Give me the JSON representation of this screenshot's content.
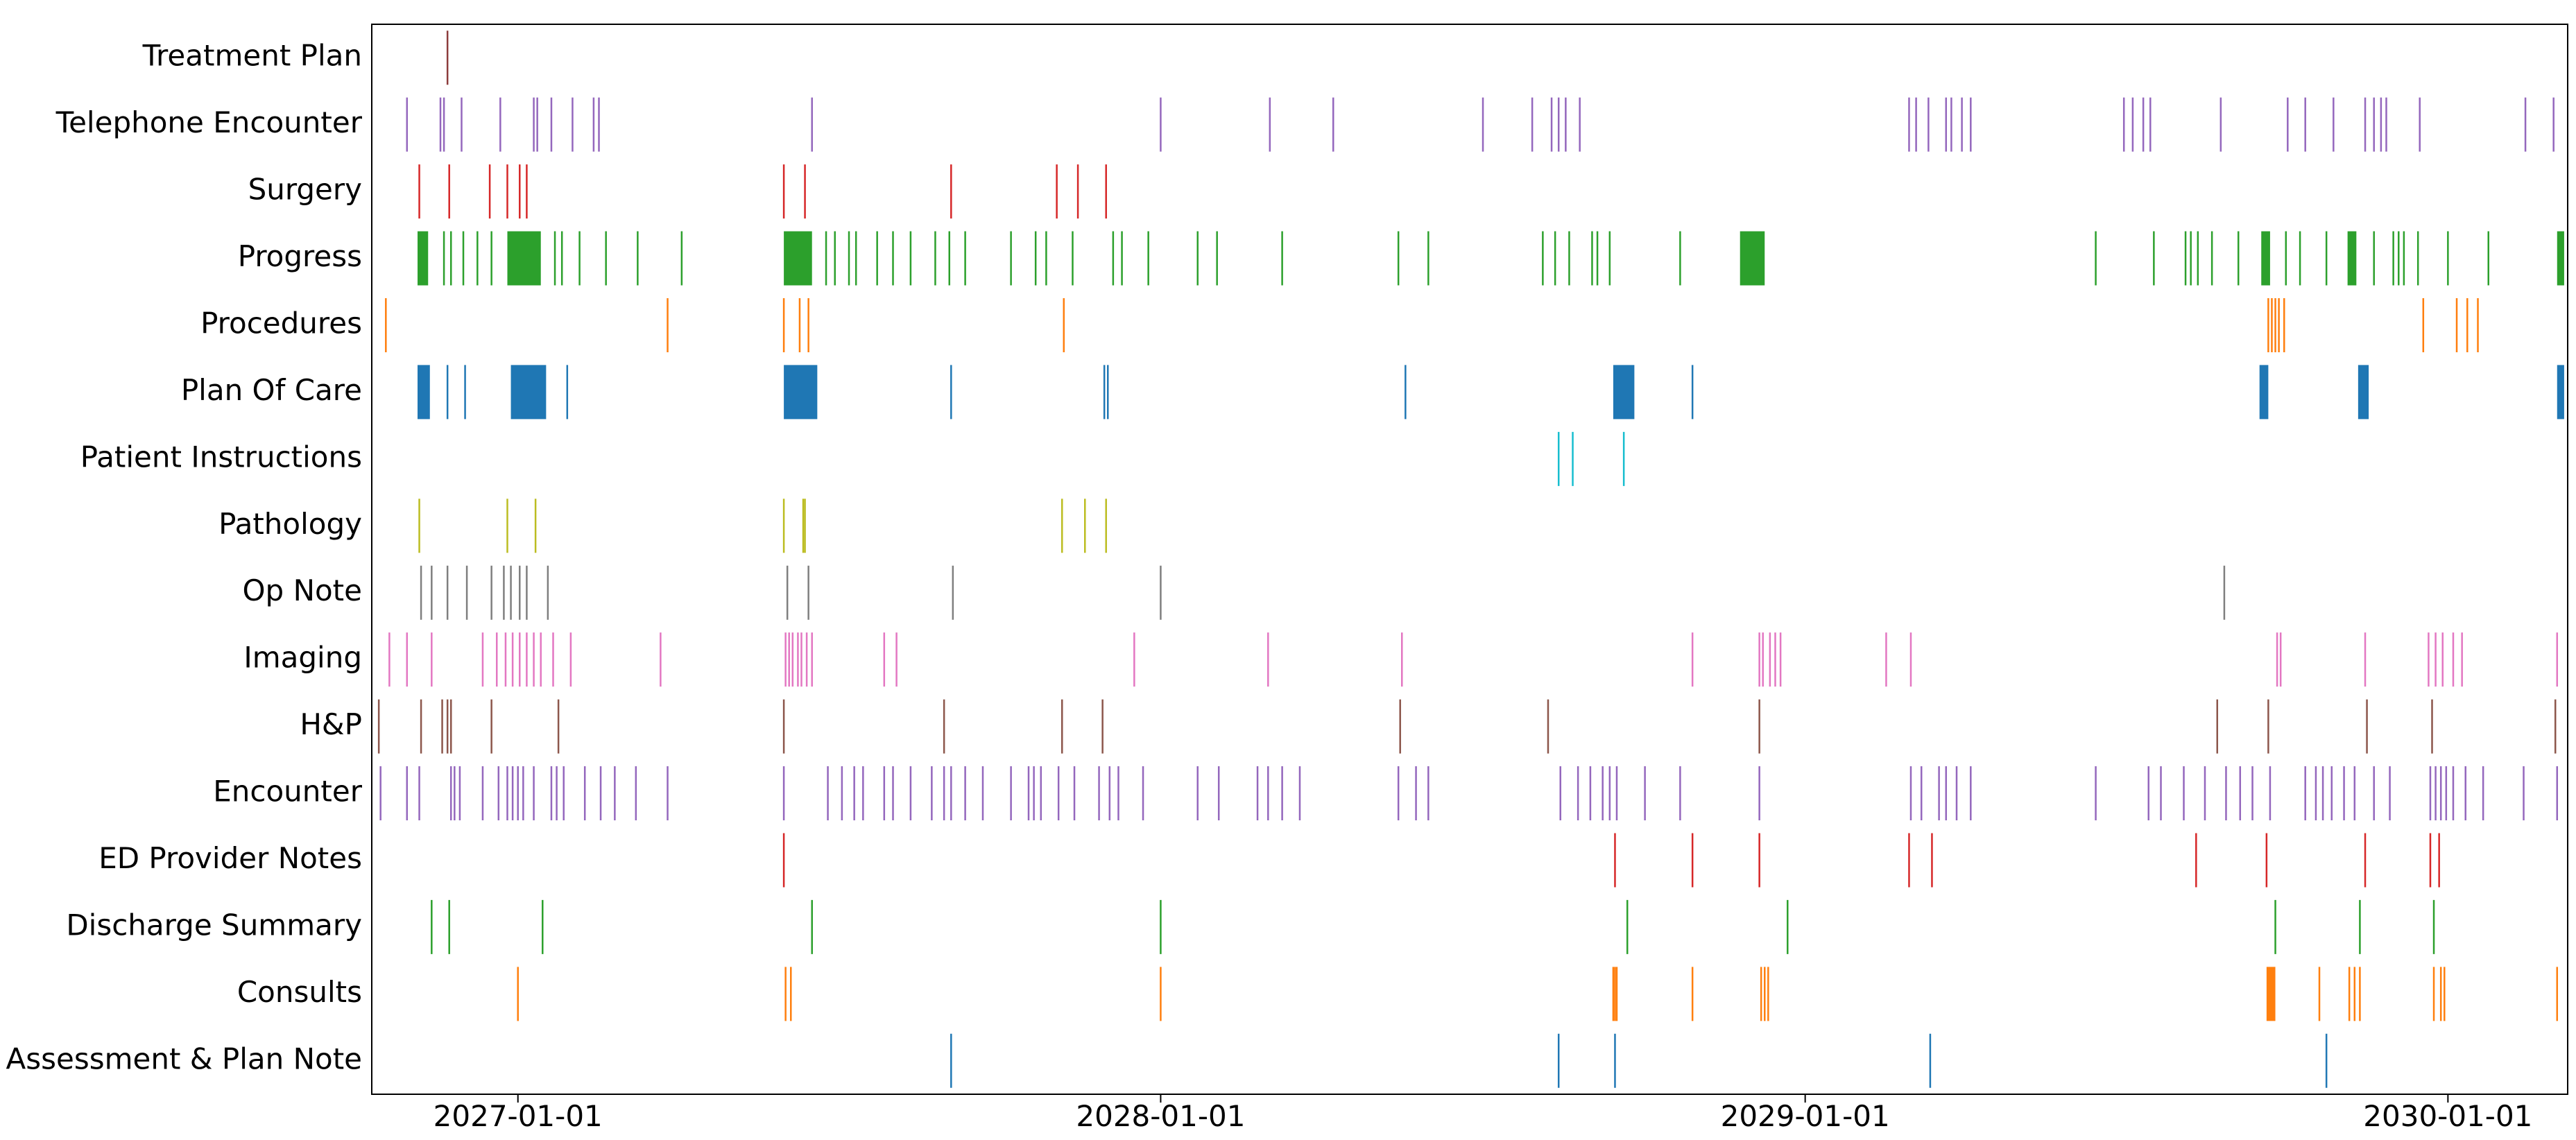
{
  "chart_data": {
    "type": "event-timeline",
    "xlabel": "",
    "ylabel": "",
    "x_tick_labels": [
      "2027-01-01",
      "2028-01-01",
      "2029-01-01",
      "2030-01-01"
    ],
    "xlim": [
      "2026-10-10",
      "2030-03-10"
    ],
    "grid": false,
    "series": [
      {
        "name": "Treatment Plan",
        "color": "#8c3b3b",
        "dates": [
          "2026-11-22"
        ]
      },
      {
        "name": "Telephone Encounter",
        "color": "#9467bd",
        "dates": [
          "2026-10-30",
          "2026-11-18",
          "2026-11-20",
          "2026-11-30",
          "2026-12-22",
          "2027-01-10",
          "2027-01-12",
          "2027-01-20",
          "2027-02-01",
          "2027-02-13",
          "2027-02-16",
          "2027-06-17",
          "2028-01-01",
          "2028-03-03",
          "2028-04-08",
          "2028-07-02",
          "2028-07-30",
          "2028-08-10",
          "2028-08-14",
          "2028-08-18",
          "2028-08-26",
          "2029-03-01",
          "2029-03-05",
          "2029-03-12",
          "2029-03-22",
          "2029-03-25",
          "2029-03-31",
          "2029-04-05",
          "2029-07-01",
          "2029-07-06",
          "2029-07-12",
          "2029-07-16",
          "2029-08-25",
          "2029-10-02",
          "2029-10-12",
          "2029-10-28",
          "2029-11-15",
          "2029-11-20",
          "2029-11-24",
          "2029-11-27",
          "2029-12-16",
          "2030-02-14",
          "2030-03-02"
        ]
      },
      {
        "name": "Surgery",
        "color": "#d62728",
        "dates": [
          "2026-11-06",
          "2026-11-23",
          "2026-12-16",
          "2026-12-26",
          "2027-01-02",
          "2027-01-06",
          "2027-06-01",
          "2027-06-13",
          "2027-09-04",
          "2027-11-03",
          "2027-11-15",
          "2027-12-01"
        ]
      },
      {
        "name": "Progress",
        "color": "#2ca02c",
        "ranges": [
          [
            "2026-11-05",
            "2026-11-11"
          ],
          [
            "2026-12-26",
            "2027-01-14"
          ],
          [
            "2027-06-01",
            "2027-06-17"
          ],
          [
            "2028-11-25",
            "2028-12-09"
          ],
          [
            "2029-09-17",
            "2029-09-22"
          ],
          [
            "2029-11-05",
            "2029-11-10"
          ],
          [
            "2030-03-04",
            "2030-03-08"
          ]
        ],
        "dates": [
          "2026-11-20",
          "2026-11-24",
          "2026-12-01",
          "2026-12-09",
          "2026-12-17",
          "2027-01-22",
          "2027-01-26",
          "2027-02-05",
          "2027-02-20",
          "2027-03-10",
          "2027-04-04",
          "2027-06-25",
          "2027-06-30",
          "2027-07-08",
          "2027-07-12",
          "2027-07-24",
          "2027-08-02",
          "2027-08-12",
          "2027-08-26",
          "2027-09-03",
          "2027-09-12",
          "2027-10-08",
          "2027-10-22",
          "2027-10-28",
          "2027-11-12",
          "2027-12-05",
          "2027-12-10",
          "2027-12-25",
          "2028-01-22",
          "2028-02-02",
          "2028-03-10",
          "2028-05-15",
          "2028-06-01",
          "2028-08-05",
          "2028-08-12",
          "2028-08-20",
          "2028-09-02",
          "2028-09-05",
          "2028-09-12",
          "2028-10-22",
          "2029-06-15",
          "2029-07-18",
          "2029-08-05",
          "2029-08-08",
          "2029-08-12",
          "2029-08-20",
          "2029-09-04",
          "2029-10-01",
          "2029-10-09",
          "2029-10-24",
          "2029-11-20",
          "2029-12-01",
          "2029-12-04",
          "2029-12-07",
          "2029-12-15",
          "2030-01-01",
          "2030-01-24"
        ]
      },
      {
        "name": "Procedures",
        "color": "#ff7f0e",
        "dates": [
          "2026-10-18",
          "2027-03-27",
          "2027-06-01",
          "2027-06-10",
          "2027-06-15",
          "2027-11-07",
          "2029-09-21",
          "2029-09-23",
          "2029-09-25",
          "2029-09-27",
          "2029-09-30",
          "2029-12-18",
          "2030-01-06",
          "2030-01-12",
          "2030-01-18"
        ]
      },
      {
        "name": "Plan Of Care",
        "color": "#1f77b4",
        "ranges": [
          [
            "2026-11-05",
            "2026-11-12"
          ],
          [
            "2026-12-28",
            "2027-01-17"
          ],
          [
            "2027-06-01",
            "2027-06-20"
          ],
          [
            "2028-09-14",
            "2028-09-26"
          ],
          [
            "2029-09-16",
            "2029-09-21"
          ],
          [
            "2029-11-11",
            "2029-11-17"
          ],
          [
            "2030-03-04",
            "2030-03-08"
          ]
        ],
        "dates": [
          "2026-11-22",
          "2026-12-02",
          "2027-01-29",
          "2027-09-04",
          "2027-11-30",
          "2027-12-02",
          "2028-05-19",
          "2028-10-29"
        ]
      },
      {
        "name": "Patient Instructions",
        "color": "#17becf",
        "dates": [
          "2028-08-14",
          "2028-08-22",
          "2028-09-20"
        ]
      },
      {
        "name": "Pathology",
        "color": "#bcbd22",
        "dates": [
          "2026-11-06",
          "2026-12-26",
          "2027-01-11",
          "2027-06-01",
          "2027-06-12",
          "2027-06-13",
          "2027-11-06",
          "2027-11-19",
          "2027-12-01"
        ]
      },
      {
        "name": "Op Note",
        "color": "#7f7f7f",
        "dates": [
          "2026-11-07",
          "2026-11-13",
          "2026-11-22",
          "2026-12-03",
          "2026-12-17",
          "2026-12-24",
          "2026-12-28",
          "2027-01-02",
          "2027-01-06",
          "2027-01-18",
          "2027-06-03",
          "2027-06-15",
          "2027-09-05",
          "2028-01-01",
          "2029-08-27"
        ]
      },
      {
        "name": "Imaging",
        "color": "#e377c2",
        "dates": [
          "2026-10-20",
          "2026-10-30",
          "2026-11-13",
          "2026-12-12",
          "2026-12-20",
          "2026-12-25",
          "2026-12-29",
          "2027-01-02",
          "2027-01-06",
          "2027-01-10",
          "2027-01-14",
          "2027-01-21",
          "2027-01-31",
          "2027-03-23",
          "2027-06-02",
          "2027-06-04",
          "2027-06-06",
          "2027-06-09",
          "2027-06-11",
          "2027-06-14",
          "2027-06-17",
          "2027-07-28",
          "2027-08-04",
          "2027-12-17",
          "2028-03-02",
          "2028-05-17",
          "2028-10-29",
          "2028-12-06",
          "2028-12-08",
          "2028-12-12",
          "2028-12-15",
          "2028-12-18",
          "2029-02-16",
          "2029-03-02",
          "2029-09-26",
          "2029-09-28",
          "2029-11-15",
          "2029-12-21",
          "2029-12-25",
          "2029-12-29",
          "2030-01-04",
          "2030-01-09",
          "2030-03-04"
        ]
      },
      {
        "name": "H&P",
        "color": "#8c564b",
        "dates": [
          "2026-10-14",
          "2026-11-07",
          "2026-11-19",
          "2026-11-22",
          "2026-11-24",
          "2026-12-17",
          "2027-01-24",
          "2027-06-01",
          "2027-08-31",
          "2027-11-06",
          "2027-11-29",
          "2028-05-16",
          "2028-08-08",
          "2028-12-06",
          "2029-08-23",
          "2029-09-21",
          "2029-11-16",
          "2029-12-23",
          "2030-03-03"
        ]
      },
      {
        "name": "Encounter",
        "color": "#9467bd",
        "dates": [
          "2026-10-15",
          "2026-10-30",
          "2026-11-06",
          "2026-11-24",
          "2026-11-26",
          "2026-11-29",
          "2026-12-12",
          "2026-12-21",
          "2026-12-26",
          "2026-12-29",
          "2027-01-01",
          "2027-01-04",
          "2027-01-10",
          "2027-01-20",
          "2027-01-23",
          "2027-01-27",
          "2027-02-08",
          "2027-02-17",
          "2027-02-25",
          "2027-03-09",
          "2027-03-27",
          "2027-06-01",
          "2027-06-26",
          "2027-07-04",
          "2027-07-11",
          "2027-07-16",
          "2027-07-28",
          "2027-08-02",
          "2027-08-12",
          "2027-08-24",
          "2027-08-31",
          "2027-09-04",
          "2027-09-12",
          "2027-09-22",
          "2027-10-08",
          "2027-10-18",
          "2027-10-21",
          "2027-10-25",
          "2027-11-04",
          "2027-11-13",
          "2027-11-27",
          "2027-12-03",
          "2027-12-08",
          "2027-12-22",
          "2028-01-22",
          "2028-02-03",
          "2028-02-25",
          "2028-03-02",
          "2028-03-10",
          "2028-03-20",
          "2028-05-15",
          "2028-05-25",
          "2028-06-01",
          "2028-08-15",
          "2028-08-25",
          "2028-09-01",
          "2028-09-08",
          "2028-09-12",
          "2028-09-16",
          "2028-10-02",
          "2028-10-22",
          "2028-12-06",
          "2029-03-02",
          "2029-03-08",
          "2029-03-18",
          "2029-03-22",
          "2029-03-28",
          "2029-04-05",
          "2029-06-15",
          "2029-07-15",
          "2029-07-22",
          "2029-08-04",
          "2029-08-16",
          "2029-08-28",
          "2029-09-05",
          "2029-09-12",
          "2029-09-22",
          "2029-10-12",
          "2029-10-18",
          "2029-10-22",
          "2029-10-27",
          "2029-11-03",
          "2029-11-09",
          "2029-11-20",
          "2029-11-29",
          "2029-12-22",
          "2029-12-25",
          "2029-12-28",
          "2029-12-31",
          "2030-01-04",
          "2030-01-11",
          "2030-01-21",
          "2030-02-13",
          "2030-03-04"
        ]
      },
      {
        "name": "ED Provider Notes",
        "color": "#d62728",
        "dates": [
          "2027-06-01",
          "2028-09-15",
          "2028-10-29",
          "2028-12-06",
          "2029-03-01",
          "2029-03-14",
          "2029-08-11",
          "2029-09-20",
          "2029-11-15",
          "2029-12-22",
          "2029-12-27"
        ]
      },
      {
        "name": "Discharge Summary",
        "color": "#2ca02c",
        "dates": [
          "2026-11-13",
          "2026-11-23",
          "2027-01-15",
          "2027-06-17",
          "2028-01-01",
          "2028-09-22",
          "2028-12-22",
          "2029-09-25",
          "2029-11-12",
          "2029-12-24"
        ]
      },
      {
        "name": "Consults",
        "color": "#ff7f0e",
        "ranges": [
          [
            "2029-09-20",
            "2029-09-25"
          ]
        ],
        "dates": [
          "2027-01-01",
          "2027-06-02",
          "2027-06-05",
          "2028-01-01",
          "2028-09-14",
          "2028-09-15",
          "2028-09-16",
          "2028-10-29",
          "2028-12-07",
          "2028-12-09",
          "2028-12-11",
          "2029-10-20",
          "2029-11-06",
          "2029-11-09",
          "2029-11-12",
          "2029-12-24",
          "2029-12-28",
          "2029-12-30",
          "2030-03-04"
        ]
      },
      {
        "name": "Assessment & Plan Note",
        "color": "#1f77b4",
        "dates": [
          "2027-09-04",
          "2028-08-14",
          "2028-09-15",
          "2029-03-13",
          "2029-10-24"
        ]
      }
    ]
  }
}
